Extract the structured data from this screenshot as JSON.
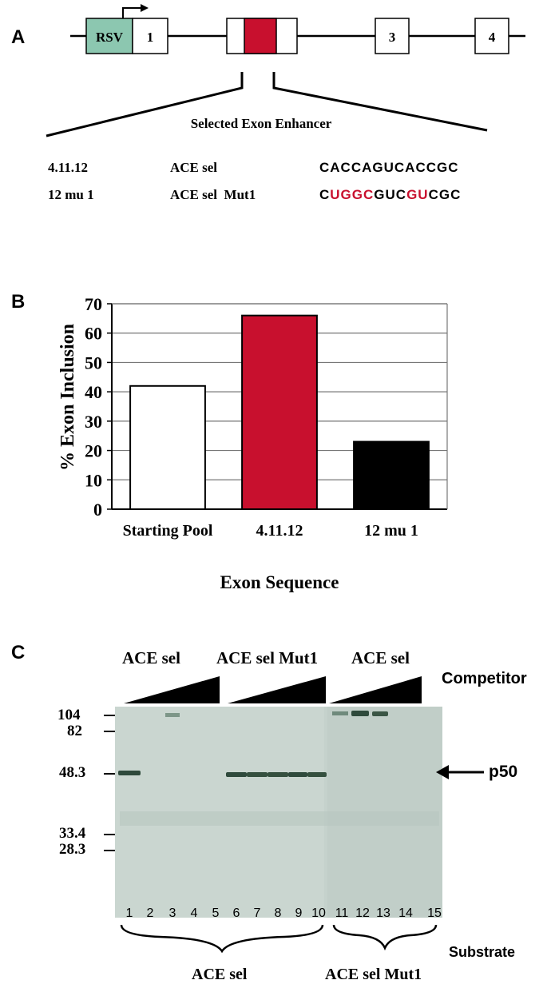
{
  "panels": {
    "a": "A",
    "b": "B",
    "c": "C"
  },
  "panel_a": {
    "exons": {
      "rsv": "RSV",
      "exon1": "1",
      "exon3": "3",
      "exon4": "4"
    },
    "enhancer_title": "Selected Exon Enhancer",
    "rows": [
      {
        "id": "4.11.12",
        "name": "ACE sel",
        "segments": [
          {
            "text": "CACCAGUCACCGC",
            "color": "black"
          }
        ]
      },
      {
        "id": "12 mu 1",
        "name": "ACE sel  Mut1",
        "segments": [
          {
            "text": "C",
            "color": "black"
          },
          {
            "text": "UGGC",
            "color": "red"
          },
          {
            "text": "GUC",
            "color": "black"
          },
          {
            "text": "GU",
            "color": "red"
          },
          {
            "text": "CGC",
            "color": "black"
          }
        ]
      }
    ]
  },
  "chart_data": {
    "type": "bar",
    "categories": [
      "Starting Pool",
      "4.11.12",
      "12 mu 1"
    ],
    "values": [
      42,
      66,
      23
    ],
    "bar_colors": [
      "#ffffff",
      "#c8102e",
      "#000000"
    ],
    "title": "",
    "xlabel": "Exon Sequence",
    "ylabel": "% Exon Inclusion",
    "ylim": [
      0,
      70
    ],
    "yticks": [
      "0",
      "10",
      "20",
      "30",
      "40",
      "50",
      "60",
      "70"
    ],
    "grid": true,
    "legend": "none"
  },
  "panel_c": {
    "group_labels": [
      "ACE sel",
      "ACE sel Mut1",
      "ACE sel"
    ],
    "competitor_label": "Competitor",
    "markers": [
      "104",
      "82",
      "48.3",
      "33.4",
      "28.3"
    ],
    "band_label": "p50",
    "lanes": [
      "1",
      "2",
      "3",
      "4",
      "5",
      "6",
      "7",
      "8",
      "9",
      "10",
      "11",
      "12",
      "13",
      "14",
      "15"
    ],
    "substrate_label": "Substrate",
    "substrate_groups": [
      "ACE sel",
      "ACE sel Mut1"
    ],
    "colors": {
      "gel_bg": "#c5d2cc",
      "band": "#2f4a3c",
      "triangle": "#000000"
    }
  },
  "colors": {
    "rsv_box": "#8cc7b0",
    "enhancer": "#c8102e",
    "line": "#000000"
  }
}
